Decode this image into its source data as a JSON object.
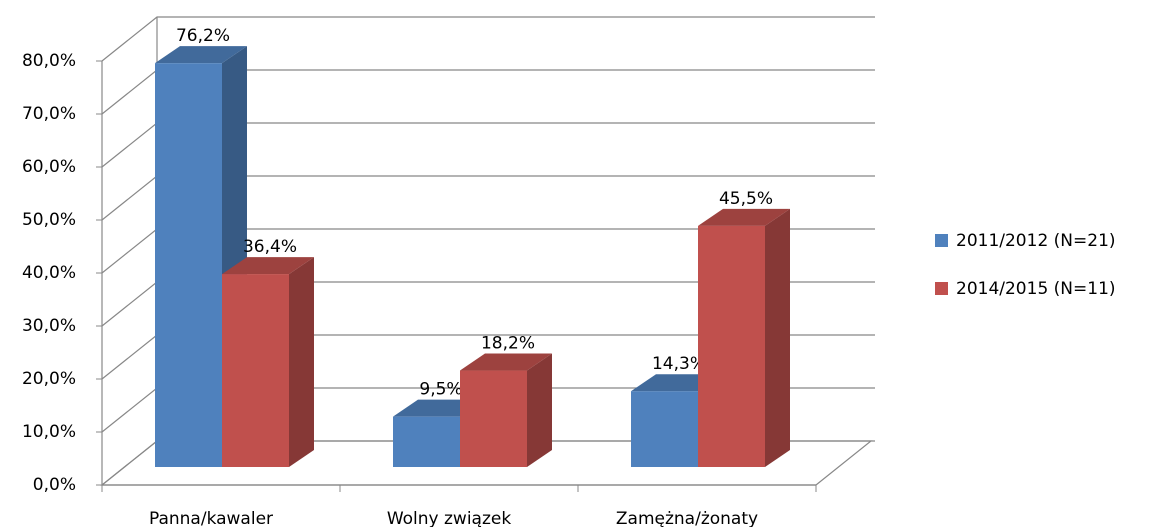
{
  "chart_data": {
    "type": "bar3d",
    "categories": [
      "Panna/kawaler",
      "Wolny związek",
      "Zamężna/żonaty"
    ],
    "series": [
      {
        "name": "2011/2012 (N=21)",
        "color": "#4f81bd",
        "values": [
          76.2,
          9.5,
          14.3
        ],
        "value_labels": [
          "76,2%",
          "9,5%",
          "14,3%"
        ]
      },
      {
        "name": "2014/2015 (N=11)",
        "color": "#c0504d",
        "values": [
          36.4,
          18.2,
          45.5
        ],
        "value_labels": [
          "36,4%",
          "18,2%",
          "45,5%"
        ]
      }
    ],
    "ylim": [
      0,
      80
    ],
    "yticks": [
      {
        "value": 0,
        "label": "0,0%"
      },
      {
        "value": 10,
        "label": "10,0%"
      },
      {
        "value": 20,
        "label": "20,0%"
      },
      {
        "value": 30,
        "label": "30,0%"
      },
      {
        "value": 40,
        "label": "40,0%"
      },
      {
        "value": 50,
        "label": "50,0%"
      },
      {
        "value": 60,
        "label": "60,0%"
      },
      {
        "value": 70,
        "label": "70,0%"
      },
      {
        "value": 80,
        "label": "80,0%"
      }
    ],
    "grid": true,
    "legend": "right"
  }
}
